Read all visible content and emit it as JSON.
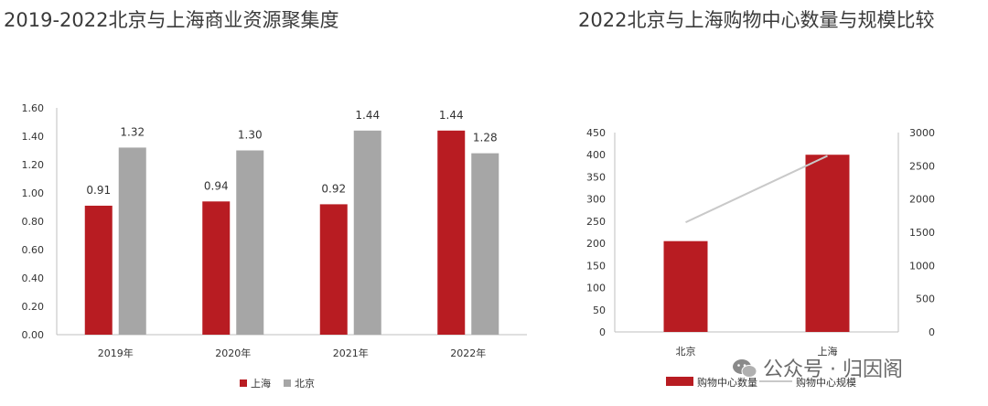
{
  "colors": {
    "shanghai": "#b81c22",
    "beijing": "#a6a6a6",
    "line": "#c9c9c9",
    "axis": "#bfbfbf"
  },
  "watermark": {
    "text": "公众号 · 归因阁",
    "icon": "wechat-icon"
  },
  "chart_data": [
    {
      "type": "bar",
      "title": "2019-2022北京与上海商业资源聚集度",
      "categories": [
        "2019年",
        "2020年",
        "2021年",
        "2022年"
      ],
      "series": [
        {
          "name": "上海",
          "values": [
            0.91,
            0.94,
            0.92,
            1.44
          ],
          "labels": [
            "0.91",
            "0.94",
            "0.92",
            "1.44"
          ]
        },
        {
          "name": "北京",
          "values": [
            1.32,
            1.3,
            1.44,
            1.28
          ],
          "labels": [
            "1.32",
            "1.30",
            "1.44",
            "1.28"
          ]
        }
      ],
      "ylim": [
        0,
        1.6
      ],
      "yticks": [
        "0.00",
        "0.20",
        "0.40",
        "0.60",
        "0.80",
        "1.00",
        "1.20",
        "1.40",
        "1.60"
      ],
      "legend_position": "bottom"
    },
    {
      "type": "bar",
      "title": "2022北京与上海购物中心数量与规模比较",
      "categories": [
        "北京",
        "上海"
      ],
      "series": [
        {
          "name": "购物中心数量",
          "type": "bar",
          "axis": "left",
          "values": [
            205,
            400
          ]
        },
        {
          "name": "购物中心规模",
          "type": "line",
          "axis": "right",
          "values": [
            1650,
            2650
          ]
        }
      ],
      "ylim_left": [
        0,
        450
      ],
      "ylim_right": [
        0,
        3000
      ],
      "yticks_left": [
        "0",
        "50",
        "100",
        "150",
        "200",
        "250",
        "300",
        "350",
        "400",
        "450"
      ],
      "yticks_right": [
        "0",
        "500",
        "1000",
        "1500",
        "2000",
        "2500",
        "3000"
      ],
      "legend_position": "bottom"
    }
  ]
}
